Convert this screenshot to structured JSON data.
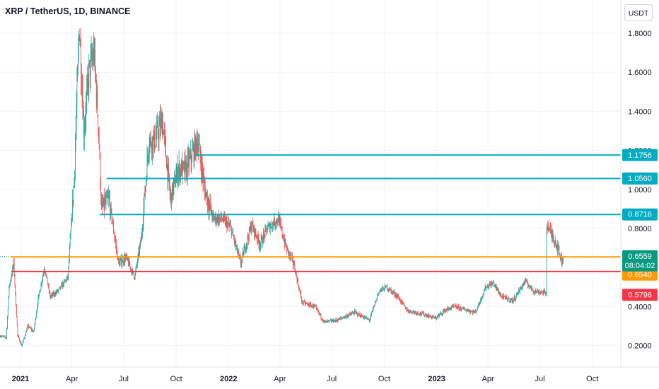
{
  "header": {
    "symbol_title": "XRP / TetherUS, 1D, BINANCE"
  },
  "currency_button": {
    "label": "USDT"
  },
  "colors": {
    "up": "#26a69a",
    "down": "#ef5350",
    "grid": "#f0f3fa",
    "resistance_line": "#00acc1",
    "current_line": "#ff9800",
    "support_line": "#f23645",
    "last_price_tag": "#089981"
  },
  "chart_data": {
    "type": "candlestick",
    "title": "XRP / TetherUS, 1D, BINANCE",
    "ylim": [
      0.09,
      1.97
    ],
    "y_ticks": [
      "1.8000",
      "1.6000",
      "1.4000",
      "1.2000",
      "1.0000",
      "0.8000",
      "0.4000",
      "0.2000"
    ],
    "x_ticks": [
      {
        "label": "2021",
        "date": "2021-01-01",
        "bold": true
      },
      {
        "label": "Apr",
        "date": "2021-04-01"
      },
      {
        "label": "Jul",
        "date": "2021-07-01"
      },
      {
        "label": "Oct",
        "date": "2021-10-01"
      },
      {
        "label": "2022",
        "date": "2022-01-01",
        "bold": true
      },
      {
        "label": "Apr",
        "date": "2022-04-01"
      },
      {
        "label": "Jul",
        "date": "2022-07-01"
      },
      {
        "label": "Oct",
        "date": "2022-10-01"
      },
      {
        "label": "2023",
        "date": "2023-01-01",
        "bold": true
      },
      {
        "label": "Apr",
        "date": "2023-04-01"
      },
      {
        "label": "Jul",
        "date": "2023-07-01"
      },
      {
        "label": "Oct",
        "date": "2023-10-01"
      }
    ],
    "x_range": [
      "2020-11-26",
      "2023-11-20"
    ],
    "price_path": [
      [
        "2020-11-26",
        0.25
      ],
      [
        "2020-12-07",
        0.24
      ],
      [
        "2020-12-12",
        0.5
      ],
      [
        "2020-12-20",
        0.62
      ],
      [
        "2020-12-27",
        0.25
      ],
      [
        "2021-01-03",
        0.2
      ],
      [
        "2021-01-14",
        0.3
      ],
      [
        "2021-01-24",
        0.27
      ],
      [
        "2021-02-01",
        0.44
      ],
      [
        "2021-02-12",
        0.6
      ],
      [
        "2021-02-22",
        0.45
      ],
      [
        "2021-03-08",
        0.48
      ],
      [
        "2021-03-25",
        0.55
      ],
      [
        "2021-04-05",
        1.05
      ],
      [
        "2021-04-14",
        1.85
      ],
      [
        "2021-04-22",
        1.3
      ],
      [
        "2021-05-01",
        1.6
      ],
      [
        "2021-05-10",
        1.7
      ],
      [
        "2021-05-18",
        1.3
      ],
      [
        "2021-05-23",
        0.9
      ],
      [
        "2021-06-05",
        0.95
      ],
      [
        "2021-06-22",
        0.62
      ],
      [
        "2021-07-05",
        0.65
      ],
      [
        "2021-07-20",
        0.55
      ],
      [
        "2021-08-01",
        0.75
      ],
      [
        "2021-08-14",
        1.25
      ],
      [
        "2021-08-24",
        1.25
      ],
      [
        "2021-09-07",
        1.35
      ],
      [
        "2021-09-21",
        0.95
      ],
      [
        "2021-10-04",
        1.1
      ],
      [
        "2021-10-18",
        1.1
      ],
      [
        "2021-10-25",
        1.15
      ],
      [
        "2021-11-08",
        1.25
      ],
      [
        "2021-11-20",
        1.0
      ],
      [
        "2021-12-05",
        0.85
      ],
      [
        "2021-12-20",
        0.85
      ],
      [
        "2022-01-05",
        0.8
      ],
      [
        "2022-01-22",
        0.62
      ],
      [
        "2022-02-10",
        0.82
      ],
      [
        "2022-02-25",
        0.72
      ],
      [
        "2022-03-10",
        0.8
      ],
      [
        "2022-03-29",
        0.85
      ],
      [
        "2022-04-12",
        0.7
      ],
      [
        "2022-04-25",
        0.62
      ],
      [
        "2022-05-10",
        0.42
      ],
      [
        "2022-06-01",
        0.4
      ],
      [
        "2022-06-18",
        0.32
      ],
      [
        "2022-07-10",
        0.33
      ],
      [
        "2022-08-10",
        0.37
      ],
      [
        "2022-09-05",
        0.33
      ],
      [
        "2022-09-22",
        0.48
      ],
      [
        "2022-10-05",
        0.5
      ],
      [
        "2022-10-25",
        0.45
      ],
      [
        "2022-11-10",
        0.38
      ],
      [
        "2022-12-10",
        0.36
      ],
      [
        "2022-12-30",
        0.34
      ],
      [
        "2023-01-15",
        0.38
      ],
      [
        "2023-02-01",
        0.4
      ],
      [
        "2023-03-10",
        0.37
      ],
      [
        "2023-03-28",
        0.5
      ],
      [
        "2023-04-10",
        0.52
      ],
      [
        "2023-04-25",
        0.45
      ],
      [
        "2023-05-15",
        0.43
      ],
      [
        "2023-06-05",
        0.53
      ],
      [
        "2023-06-20",
        0.48
      ],
      [
        "2023-07-12",
        0.47
      ],
      [
        "2023-07-13",
        0.82
      ],
      [
        "2023-07-20",
        0.78
      ],
      [
        "2023-07-30",
        0.72
      ],
      [
        "2023-08-09",
        0.63
      ],
      [
        "2023-08-12",
        0.6559
      ]
    ],
    "horizontal_levels": [
      {
        "price": 1.1756,
        "label": "1.1756",
        "color": "#00acc1",
        "start": "2021-11-05"
      },
      {
        "price": 1.056,
        "label": "1.0560",
        "color": "#00acc1",
        "start": "2021-06-01"
      },
      {
        "price": 0.8716,
        "label": "0.8716",
        "color": "#00acc1",
        "start": "2021-05-20"
      },
      {
        "price": 0.654,
        "label": "0.6540",
        "color": "#ff9800",
        "start": "2020-12-14"
      },
      {
        "price": 0.5796,
        "label": "0.5796",
        "color": "#f23645",
        "start": "2020-12-16"
      }
    ],
    "last_price": {
      "value": "0.6559",
      "countdown": "08:04:02",
      "color": "#089981"
    }
  }
}
